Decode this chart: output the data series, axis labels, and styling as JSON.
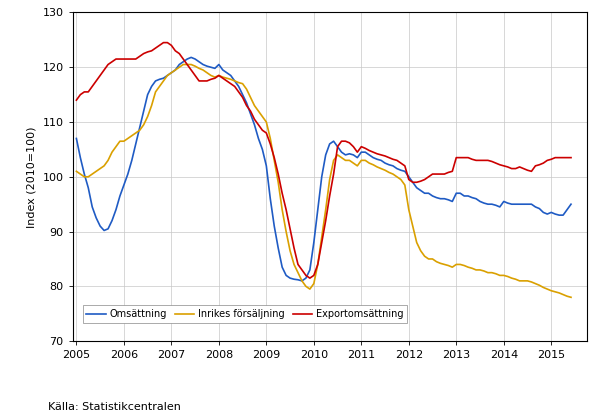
{
  "title": "",
  "ylabel": "Index (2010=100)",
  "xlabel": "",
  "source": "Källa: Statistikcentralen",
  "ylim": [
    70,
    130
  ],
  "xlim": [
    2004.92,
    2015.75
  ],
  "yticks": [
    70,
    80,
    90,
    100,
    110,
    120,
    130
  ],
  "xticks": [
    2005,
    2006,
    2007,
    2008,
    2009,
    2010,
    2011,
    2012,
    2013,
    2014,
    2015
  ],
  "legend_labels": [
    "Omsättning",
    "Inrikes försäljning",
    "Exportomsättning"
  ],
  "colors": [
    "#1f5bc4",
    "#daa000",
    "#cc0000"
  ],
  "linewidth": 1.2,
  "omsattning": [
    107.0,
    103.5,
    100.5,
    98.0,
    94.5,
    92.5,
    91.0,
    90.2,
    90.5,
    92.0,
    94.0,
    96.5,
    98.5,
    100.5,
    103.0,
    106.0,
    109.0,
    112.0,
    115.0,
    116.5,
    117.5,
    117.8,
    118.0,
    118.5,
    119.0,
    119.5,
    120.5,
    121.0,
    121.5,
    121.8,
    121.5,
    121.0,
    120.5,
    120.2,
    120.0,
    119.8,
    120.5,
    119.5,
    119.0,
    118.5,
    117.5,
    116.5,
    115.0,
    113.5,
    111.5,
    109.5,
    107.0,
    105.0,
    102.0,
    96.0,
    91.0,
    87.0,
    83.5,
    82.0,
    81.5,
    81.3,
    81.2,
    81.0,
    81.5,
    83.0,
    88.0,
    94.0,
    100.0,
    104.0,
    106.0,
    106.5,
    105.5,
    104.5,
    104.0,
    104.2,
    104.0,
    103.5,
    104.5,
    104.5,
    104.0,
    103.5,
    103.2,
    103.0,
    102.5,
    102.2,
    102.0,
    101.5,
    101.2,
    101.0,
    100.0,
    99.0,
    98.0,
    97.5,
    97.0,
    97.0,
    96.5,
    96.2,
    96.0,
    96.0,
    95.8,
    95.5,
    97.0,
    97.0,
    96.5,
    96.5,
    96.2,
    96.0,
    95.5,
    95.2,
    95.0,
    95.0,
    94.8,
    94.5,
    95.5,
    95.2,
    95.0,
    95.0,
    95.0,
    95.0,
    95.0,
    95.0,
    94.5,
    94.2,
    93.5,
    93.2,
    93.5,
    93.2,
    93.0,
    93.0,
    94.0,
    95.0
  ],
  "inrikes": [
    101.0,
    100.5,
    100.0,
    100.0,
    100.5,
    101.0,
    101.5,
    102.0,
    103.0,
    104.5,
    105.5,
    106.5,
    106.5,
    107.0,
    107.5,
    108.0,
    108.5,
    109.5,
    111.0,
    113.0,
    115.5,
    116.5,
    117.5,
    118.5,
    119.0,
    119.5,
    120.0,
    120.5,
    120.5,
    120.5,
    120.2,
    119.8,
    119.5,
    119.0,
    118.5,
    118.2,
    118.5,
    118.2,
    118.0,
    117.8,
    117.5,
    117.2,
    117.0,
    116.0,
    114.5,
    113.0,
    112.0,
    111.0,
    110.0,
    107.0,
    103.0,
    99.0,
    94.0,
    90.0,
    86.5,
    84.0,
    82.5,
    81.0,
    80.0,
    79.5,
    80.5,
    84.0,
    89.0,
    94.0,
    99.5,
    103.0,
    104.0,
    103.5,
    103.0,
    103.0,
    102.5,
    102.0,
    103.0,
    103.0,
    102.5,
    102.2,
    101.8,
    101.5,
    101.2,
    100.8,
    100.5,
    100.0,
    99.5,
    98.5,
    94.0,
    91.0,
    88.0,
    86.5,
    85.5,
    85.0,
    85.0,
    84.5,
    84.2,
    84.0,
    83.8,
    83.5,
    84.0,
    84.0,
    83.8,
    83.5,
    83.3,
    83.0,
    83.0,
    82.8,
    82.5,
    82.5,
    82.3,
    82.0,
    82.0,
    81.8,
    81.5,
    81.3,
    81.0,
    81.0,
    81.0,
    80.8,
    80.5,
    80.2,
    79.8,
    79.5,
    79.2,
    79.0,
    78.8,
    78.5,
    78.2,
    78.0
  ],
  "exportomsattning": [
    114.0,
    115.0,
    115.5,
    115.5,
    116.5,
    117.5,
    118.5,
    119.5,
    120.5,
    121.0,
    121.5,
    121.5,
    121.5,
    121.5,
    121.5,
    121.5,
    122.0,
    122.5,
    122.8,
    123.0,
    123.5,
    124.0,
    124.5,
    124.5,
    124.0,
    123.0,
    122.5,
    121.5,
    120.5,
    119.5,
    118.5,
    117.5,
    117.5,
    117.5,
    117.8,
    118.0,
    118.5,
    118.0,
    117.5,
    117.0,
    116.5,
    115.5,
    114.5,
    113.0,
    112.0,
    110.5,
    109.5,
    108.5,
    108.0,
    106.0,
    103.5,
    100.5,
    97.0,
    94.0,
    90.5,
    87.0,
    84.0,
    83.0,
    82.0,
    81.5,
    82.0,
    84.0,
    88.0,
    92.0,
    96.5,
    100.5,
    105.5,
    106.5,
    106.5,
    106.2,
    105.5,
    104.5,
    105.5,
    105.2,
    104.8,
    104.5,
    104.2,
    104.0,
    103.8,
    103.5,
    103.2,
    103.0,
    102.5,
    102.0,
    99.5,
    99.0,
    99.0,
    99.2,
    99.5,
    100.0,
    100.5,
    100.5,
    100.5,
    100.5,
    100.8,
    101.0,
    103.5,
    103.5,
    103.5,
    103.5,
    103.2,
    103.0,
    103.0,
    103.0,
    103.0,
    102.8,
    102.5,
    102.2,
    102.0,
    101.8,
    101.5,
    101.5,
    101.8,
    101.5,
    101.2,
    101.0,
    102.0,
    102.2,
    102.5,
    103.0,
    103.2,
    103.5,
    103.5,
    103.5,
    103.5,
    103.5
  ]
}
